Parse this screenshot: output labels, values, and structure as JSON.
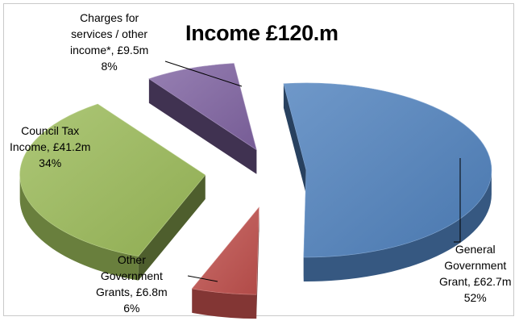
{
  "chart_data": {
    "type": "pie",
    "style": "3d-exploded",
    "title": "Income £120.m",
    "unit": "£m",
    "slices": [
      {
        "name": "General Government Grant",
        "value": 62.7,
        "percent": 52,
        "color": "#4f81bd",
        "label_lines": [
          "General",
          "Government",
          "Grant, £62.7m",
          "52%"
        ]
      },
      {
        "name": "Other Government Grants",
        "value": 6.8,
        "percent": 6,
        "color": "#c0504d",
        "label_lines": [
          "Other",
          "Government",
          "Grants, £6.8m",
          "6%"
        ]
      },
      {
        "name": "Council Tax Income",
        "value": 41.2,
        "percent": 34,
        "color": "#9bbb59",
        "label_lines": [
          "Council Tax",
          "Income, £41.2m",
          "34%"
        ]
      },
      {
        "name": "Charges for services / other income*",
        "value": 9.5,
        "percent": 8,
        "color": "#8064a2",
        "label_lines": [
          "Charges for",
          "services / other",
          "income*, £9.5m",
          "8%"
        ]
      }
    ],
    "legend": "none"
  }
}
